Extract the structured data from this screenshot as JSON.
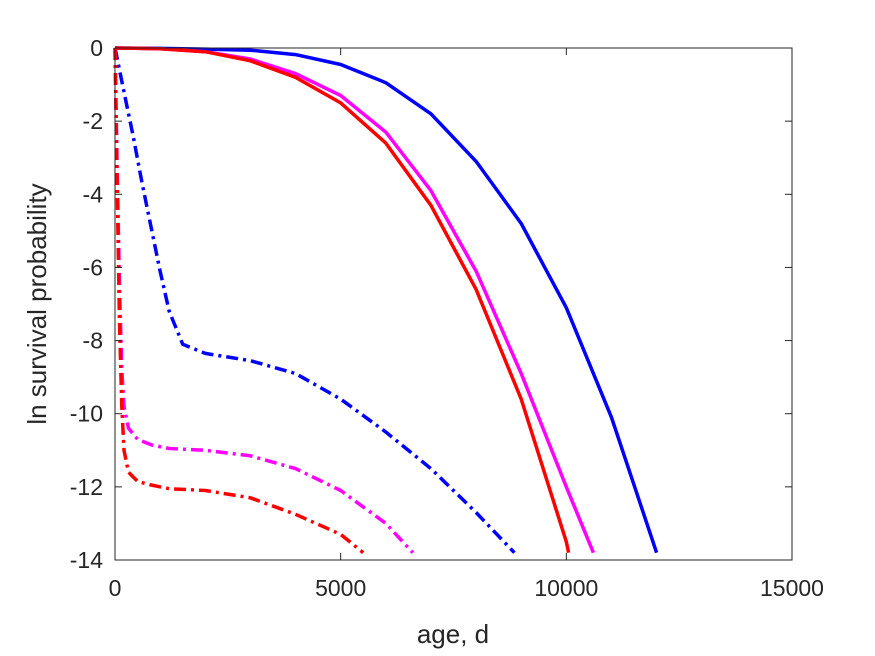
{
  "chart_data": {
    "type": "line",
    "title": "",
    "xlabel": "age, d",
    "ylabel": "ln survival probability",
    "xlim": [
      0,
      15000
    ],
    "ylim": [
      -14,
      0
    ],
    "xticks": [
      0,
      5000,
      10000,
      15000
    ],
    "yticks": [
      0,
      -2,
      -4,
      -6,
      -8,
      -10,
      -12,
      -14
    ],
    "xtick_labels": [
      "0",
      "5000",
      "10000",
      "15000"
    ],
    "ytick_labels": [
      "0",
      "-2",
      "-4",
      "-6",
      "-8",
      "-10",
      "-12",
      "-14"
    ],
    "grid": false,
    "legend": "none",
    "series": [
      {
        "color": "#0000ff",
        "style": "solid",
        "x": [
          0,
          1000,
          2000,
          3000,
          4000,
          5000,
          6000,
          7000,
          8000,
          9000,
          10000,
          11000,
          12000
        ],
        "y": [
          0,
          -0.01,
          -0.03,
          -0.06,
          -0.18,
          -0.45,
          -0.95,
          -1.8,
          -3.1,
          -4.8,
          -7.1,
          -10.1,
          -13.8
        ]
      },
      {
        "color": "#ff00ff",
        "style": "solid",
        "x": [
          0,
          1000,
          2000,
          3000,
          4000,
          5000,
          6000,
          7000,
          8000,
          9000,
          10000,
          10600
        ],
        "y": [
          0,
          -0.02,
          -0.1,
          -0.3,
          -0.7,
          -1.3,
          -2.3,
          -3.9,
          -6.1,
          -8.9,
          -12.0,
          -13.8
        ]
      },
      {
        "color": "#ff0000",
        "style": "solid",
        "x": [
          0,
          1000,
          2000,
          3000,
          4000,
          5000,
          6000,
          7000,
          8000,
          9000,
          10000,
          10050
        ],
        "y": [
          0,
          -0.02,
          -0.1,
          -0.35,
          -0.8,
          -1.5,
          -2.6,
          -4.3,
          -6.6,
          -9.6,
          -13.5,
          -13.8
        ]
      },
      {
        "color": "#0000ff",
        "style": "dashdot",
        "x": [
          0,
          200,
          400,
          600,
          800,
          1000,
          1200,
          1500,
          2000,
          3000,
          4000,
          5000,
          6000,
          7000,
          8000,
          8850
        ],
        "y": [
          0,
          -1.2,
          -2.4,
          -3.7,
          -4.9,
          -6.1,
          -7.2,
          -8.1,
          -8.35,
          -8.55,
          -8.9,
          -9.6,
          -10.5,
          -11.5,
          -12.7,
          -13.8
        ]
      },
      {
        "color": "#ff00ff",
        "style": "dashdot",
        "x": [
          0,
          50,
          100,
          150,
          200,
          300,
          500,
          800,
          1200,
          2000,
          3000,
          4000,
          5000,
          6000,
          6600
        ],
        "y": [
          0,
          -3.5,
          -6.5,
          -8.8,
          -9.8,
          -10.4,
          -10.7,
          -10.85,
          -10.95,
          -11.0,
          -11.15,
          -11.5,
          -12.1,
          -13.0,
          -13.8
        ]
      },
      {
        "color": "#ff0000",
        "style": "dashdot",
        "x": [
          0,
          50,
          100,
          150,
          200,
          300,
          500,
          800,
          1200,
          2000,
          3000,
          4000,
          5000,
          5500
        ],
        "y": [
          0,
          -4.0,
          -7.5,
          -9.8,
          -11.0,
          -11.6,
          -11.85,
          -11.95,
          -12.05,
          -12.1,
          -12.3,
          -12.75,
          -13.3,
          -13.8
        ]
      }
    ]
  }
}
